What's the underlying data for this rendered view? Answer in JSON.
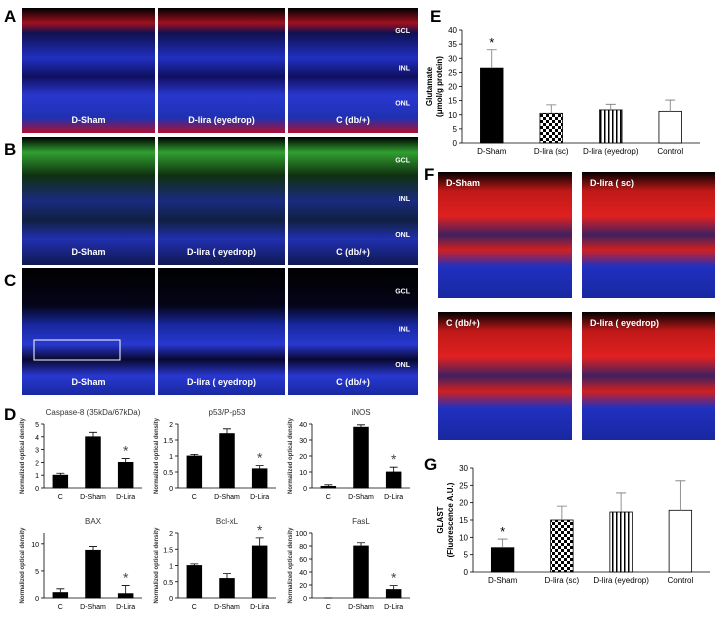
{
  "panel_letters": [
    "A",
    "B",
    "C",
    "D",
    "E",
    "F",
    "G"
  ],
  "images": {
    "A": {
      "samples": [
        "D-Sham",
        "D-lira (eyedrop)",
        "C (db/+)"
      ],
      "layers": [
        "GCL",
        "INL",
        "ONL"
      ]
    },
    "B": {
      "samples": [
        "D-Sham",
        "D-lira ( eyedrop)",
        "C (db/+)"
      ],
      "layers": [
        "GCL",
        "INL",
        "ONL"
      ]
    },
    "C": {
      "samples": [
        "D-Sham",
        "D-lira ( eyedrop)",
        "C (db/+)"
      ],
      "layers": [
        "GCL",
        "INL",
        "ONL"
      ]
    },
    "F": {
      "samples": [
        "D-Sham",
        "D-lira ( sc)",
        "C (db/+)",
        "D-lira ( eyedrop)"
      ]
    }
  },
  "chart_data": [
    {
      "type": "bar",
      "ylabel": [
        "Glutamate",
        "(μmol/g protein)"
      ],
      "categories": [
        "D-Sham",
        "D-lira (sc)",
        "D-lira (eyedrop)",
        "Control"
      ],
      "values": [
        26.5,
        10.5,
        11.7,
        11.2
      ],
      "errors": [
        6.5,
        3,
        2,
        4
      ],
      "annotations": [
        "*",
        null,
        null,
        null
      ],
      "bar_styles": [
        "black",
        "checker",
        "vertical-stripes",
        "white"
      ],
      "ylim": [
        0,
        40
      ],
      "yticks": [
        0,
        5,
        10,
        15,
        20,
        25,
        30,
        35,
        40
      ]
    },
    {
      "type": "bar",
      "ylabel": [
        "GLAST",
        "(Fluorescence A.U.)"
      ],
      "categories": [
        "D-Sham",
        "D-lira (sc)",
        "D-lira (eyedrop)",
        "Control"
      ],
      "values": [
        7,
        15,
        17.3,
        17.8
      ],
      "errors": [
        2.5,
        4,
        5.5,
        8.5
      ],
      "annotations": [
        "*",
        null,
        null,
        null
      ],
      "bar_styles": [
        "black",
        "checker",
        "vertical-stripes",
        "white"
      ],
      "ylim": [
        0,
        30
      ],
      "yticks": [
        0,
        5,
        10,
        15,
        20,
        25,
        30
      ]
    },
    {
      "type": "bar",
      "title": "Caspase-8 (35kDa/67kDa)",
      "ylabel": "Normalized optical density",
      "categories": [
        "C",
        "D-Sham",
        "D-Lira"
      ],
      "values": [
        1,
        4,
        2
      ],
      "errors": [
        0.15,
        0.35,
        0.3
      ],
      "annotations": [
        null,
        null,
        "*"
      ],
      "color": "#000000",
      "ylim": [
        0,
        5
      ],
      "yticks": [
        0,
        1,
        2,
        3,
        4,
        5
      ]
    },
    {
      "type": "bar",
      "title": "p53/P-p53",
      "ylabel": "Normalized optical density",
      "categories": [
        "C",
        "D-Sham",
        "D-Lira"
      ],
      "values": [
        1,
        1.7,
        0.6
      ],
      "errors": [
        0.05,
        0.15,
        0.1
      ],
      "annotations": [
        null,
        null,
        "*"
      ],
      "color": "#000000",
      "ylim": [
        0,
        2
      ],
      "yticks": [
        0,
        0.5,
        1,
        1.5,
        2
      ]
    },
    {
      "type": "bar",
      "title": "iNOS",
      "ylabel": "Normalized optical density",
      "categories": [
        "C",
        "D-Sham",
        "D-Lira"
      ],
      "values": [
        1,
        38,
        10
      ],
      "errors": [
        1,
        1.5,
        3
      ],
      "annotations": [
        null,
        null,
        "*"
      ],
      "color": "#000000",
      "ylim": [
        0,
        40
      ],
      "yticks": [
        0,
        10,
        20,
        30,
        40
      ]
    },
    {
      "type": "bar",
      "title": "BAX",
      "ylabel": "Normalized optical density",
      "categories": [
        "C",
        "D-Sham",
        "D-Lira"
      ],
      "values": [
        1,
        8.8,
        0.8
      ],
      "errors": [
        0.7,
        0.7,
        1.5
      ],
      "annotations": [
        null,
        null,
        "*"
      ],
      "color": "#000000",
      "ylim": [
        0,
        12
      ],
      "yticks": [
        0,
        5,
        10
      ]
    },
    {
      "type": "bar",
      "title": "Bcl-xL",
      "ylabel": "Normalized optical density",
      "categories": [
        "C",
        "D-Sham",
        "D-Lira"
      ],
      "values": [
        1,
        0.6,
        1.6
      ],
      "errors": [
        0.05,
        0.15,
        0.25
      ],
      "annotations": [
        null,
        null,
        "*"
      ],
      "color": "#000000",
      "ylim": [
        0,
        2
      ],
      "yticks": [
        0,
        0.5,
        1,
        1.5,
        2
      ]
    },
    {
      "type": "bar",
      "title": "FasL",
      "ylabel": "Normalized optical density",
      "categories": [
        "C",
        "D-Sham",
        "D-Lira"
      ],
      "values": [
        0,
        80,
        13
      ],
      "errors": [
        0,
        5,
        6
      ],
      "annotations": [
        null,
        null,
        "*"
      ],
      "color": "#000000",
      "ylim": [
        0,
        100
      ],
      "yticks": [
        0,
        20,
        40,
        60,
        80,
        100
      ]
    }
  ]
}
